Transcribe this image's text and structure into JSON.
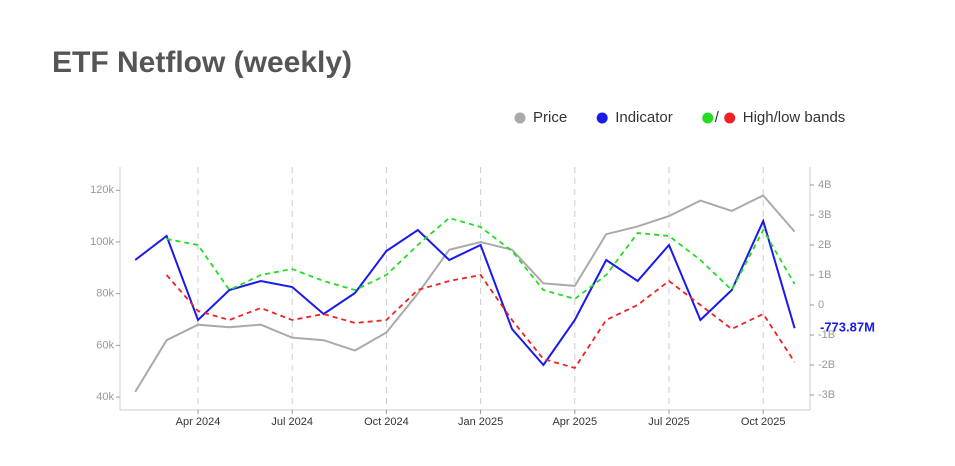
{
  "chart_data": {
    "type": "line",
    "title": "ETF Netflow (weekly)",
    "x": [
      "2024-02",
      "2024-03",
      "2024-04",
      "2024-05",
      "2024-06",
      "2024-07",
      "2024-08",
      "2024-09",
      "2024-10",
      "2024-11",
      "2024-12",
      "2025-01",
      "2025-02",
      "2025-03",
      "2025-04",
      "2025-05",
      "2025-06",
      "2025-07",
      "2025-08",
      "2025-09",
      "2025-10",
      "2025-11"
    ],
    "xticks": [
      {
        "value": "2024-04",
        "label": "Apr 2024"
      },
      {
        "value": "2024-07",
        "label": "Jul 2024"
      },
      {
        "value": "2024-10",
        "label": "Oct 2024"
      },
      {
        "value": "2025-01",
        "label": "Jan 2025"
      },
      {
        "value": "2025-04",
        "label": "Apr 2025"
      },
      {
        "value": "2025-07",
        "label": "Jul 2025"
      },
      {
        "value": "2025-10",
        "label": "Oct 2025"
      }
    ],
    "ylim": [
      35000,
      129000
    ],
    "yticks": [
      {
        "value": 40000,
        "label": "40k"
      },
      {
        "value": 60000,
        "label": "60k"
      },
      {
        "value": 80000,
        "label": "80k"
      },
      {
        "value": 100000,
        "label": "100k"
      },
      {
        "value": 120000,
        "label": "120k"
      }
    ],
    "y2lim": [
      -3.5,
      4.6
    ],
    "y2ticks": [
      {
        "value": -3,
        "label": "-3B"
      },
      {
        "value": -2,
        "label": "-2B"
      },
      {
        "value": -1,
        "label": "-1B"
      },
      0,
      {
        "value": 1,
        "label": "1B"
      },
      {
        "value": 2,
        "label": "2B"
      },
      {
        "value": 3,
        "label": "3B"
      },
      {
        "value": 4,
        "label": "4B"
      }
    ],
    "series": [
      {
        "name": "Price",
        "color": "#aaaaaa",
        "values": [
          42000,
          62000,
          68000,
          67000,
          68000,
          63000,
          62000,
          58000,
          65000,
          80000,
          97000,
          100000,
          97000,
          84000,
          83000,
          103000,
          106000,
          110000,
          116000,
          112000,
          118000,
          104000
        ]
      },
      {
        "name": "Indicator",
        "color": "#1a1aee",
        "axis": "y2",
        "values": [
          1.5,
          2.3,
          -0.5,
          0.5,
          0.8,
          0.6,
          -0.3,
          0.4,
          1.8,
          2.5,
          1.5,
          2.0,
          -0.8,
          -2.0,
          -0.5,
          1.5,
          0.8,
          2.0,
          -0.5,
          0.5,
          2.8,
          -0.77387
        ],
        "value_labels": [
          null,
          null,
          null,
          null,
          null,
          null,
          null,
          null,
          null,
          null,
          null,
          null,
          null,
          null,
          null,
          null,
          null,
          null,
          null,
          null,
          null,
          "-773.87M"
        ]
      },
      {
        "color": "#22dd22",
        "axis": "y2",
        "dashed": true,
        "values": [
          null,
          2.2,
          2.0,
          0.5,
          1.0,
          1.2,
          0.8,
          0.5,
          1.0,
          2.0,
          2.9,
          2.6,
          1.8,
          0.5,
          0.2,
          1.0,
          2.4,
          2.3,
          1.5,
          0.5,
          2.5,
          0.7
        ]
      },
      {
        "color": "#ee2222",
        "axis": "y2",
        "dashed": true,
        "values": [
          null,
          1.0,
          -0.2,
          -0.5,
          -0.1,
          -0.5,
          -0.3,
          -0.6,
          -0.5,
          0.5,
          0.8,
          1.0,
          -0.5,
          -1.8,
          -2.1,
          -0.5,
          0.0,
          0.8,
          0.0,
          -0.8,
          -0.3,
          -1.9
        ]
      }
    ],
    "legend": [
      {
        "label": "Price",
        "colors": [
          "#aaaaaa"
        ]
      },
      {
        "label": "Indicator",
        "colors": [
          "#1a1aee"
        ]
      },
      {
        "label": "High/low bands",
        "colors": [
          "#22dd22",
          "#ee2222"
        ]
      }
    ],
    "legend_separator": "/",
    "grid": true
  }
}
